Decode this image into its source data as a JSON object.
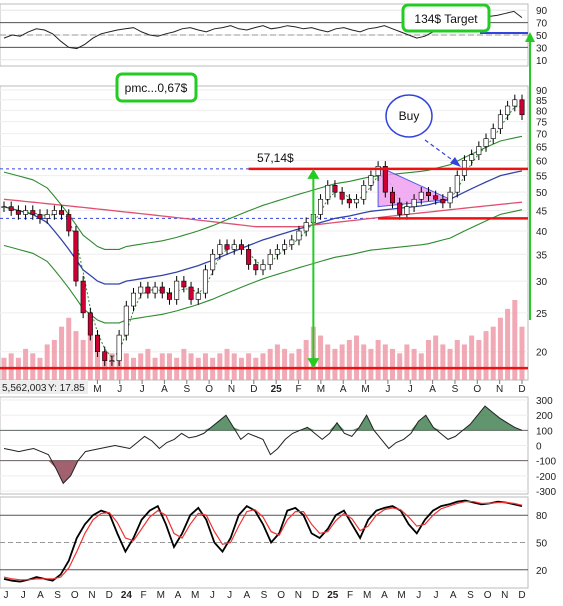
{
  "annotations": {
    "target_label": "134$ Target",
    "pmc_label": "pmc...0,67$",
    "buy_label": "Buy",
    "range_label": "57,14$"
  },
  "readout": {
    "volume_text": "5,562,003",
    "y_text": "Y: 17.85"
  },
  "colors": {
    "up_candle": "#ffffff",
    "down_candle": "#cc0033",
    "sma_blue": "#3344aa",
    "sma_pink": "#e05070",
    "bollinger": "#2e8b2e",
    "support_resistance": "#ee1111",
    "arrow_green": "#22cc22",
    "triangle_fill": "#f0a0f0",
    "annotation_box": "#22cc22",
    "buy_circle": "#3344dd",
    "volume_bars": "#ee9aa8",
    "stoch_k": "#000000",
    "stoch_d": "#ee3333"
  },
  "chart_data": [
    {
      "panel": "top-oscillator",
      "type": "line",
      "y_tick_labels": [
        "90",
        "70",
        "50",
        "30",
        "10"
      ],
      "ylim": [
        0,
        100
      ],
      "values": [
        45,
        50,
        48,
        55,
        60,
        58,
        52,
        40,
        30,
        28,
        35,
        45,
        52,
        55,
        58,
        60,
        62,
        55,
        50,
        48,
        52,
        55,
        60,
        62,
        58,
        55,
        60,
        62,
        65,
        60,
        58,
        62,
        65,
        60,
        62,
        65,
        63,
        60,
        62,
        58,
        55,
        60,
        62,
        58,
        55,
        60,
        62,
        65,
        60,
        55,
        50,
        45,
        48,
        55,
        60,
        62,
        65,
        70,
        75,
        78,
        80,
        82,
        85,
        88,
        78
      ],
      "reference_levels": [
        70,
        50,
        30
      ]
    },
    {
      "panel": "price",
      "type": "candlestick",
      "y_tick_labels": [
        "90",
        "85",
        "80",
        "75",
        "70",
        "65",
        "60",
        "55",
        "50",
        "45",
        "40",
        "35",
        "30",
        "25",
        "20"
      ],
      "y_scale": "log",
      "ylim": [
        17,
        92
      ],
      "x_tick_labels": [
        "24",
        "F",
        "M",
        "A",
        "M",
        "J",
        "J",
        "A",
        "S",
        "O",
        "N",
        "D",
        "25",
        "F",
        "M",
        "A",
        "M",
        "J",
        "J",
        "A",
        "S",
        "O",
        "N",
        "D"
      ],
      "close": [
        46,
        45,
        44,
        45,
        44,
        43,
        44,
        45,
        44,
        40,
        30,
        25,
        22,
        20,
        19,
        19,
        22,
        26,
        28,
        29,
        28,
        29,
        28,
        27,
        30,
        29,
        27,
        28,
        32,
        35,
        37,
        36,
        37,
        36,
        33,
        32,
        33,
        35,
        36,
        37,
        38,
        40,
        42,
        44,
        48,
        52,
        50,
        48,
        47,
        48,
        52,
        55,
        58,
        50,
        47,
        44,
        46,
        48,
        50,
        49,
        48,
        47,
        50,
        55,
        60,
        62,
        65,
        68,
        72,
        78,
        82,
        85,
        78
      ],
      "horizontal_levels": [
        57.14,
        43,
        18.2
      ],
      "series": [
        {
          "name": "",
          "kind": "sma-blue",
          "values": [
            46,
            45.5,
            45,
            44.5,
            44,
            43,
            42,
            40,
            38,
            36,
            34,
            32,
            31,
            30,
            29.5,
            29.5,
            29.5,
            30,
            30.2,
            30.4,
            30.6,
            30.8,
            31,
            31.3,
            31.6,
            32,
            32.4,
            32.8,
            33.3,
            33.8,
            34.4,
            35,
            35.6,
            36.2,
            36.8,
            37.4,
            38,
            38.5,
            39,
            39.5,
            40,
            40.5,
            41,
            41.5,
            42,
            42.5,
            43,
            43.3,
            43.6,
            44,
            44.4,
            44.8,
            45,
            45.2,
            45.4,
            45.6,
            45.8,
            46,
            46.2,
            46.5,
            47,
            47.5,
            48,
            49,
            50,
            51,
            52,
            53,
            54,
            55,
            55.5,
            56,
            56.5
          ]
        },
        {
          "name": "",
          "kind": "sma-pink",
          "values": [
            48,
            47.8,
            47.6,
            47.4,
            47.2,
            47,
            46.8,
            46.6,
            46.4,
            46.2,
            46,
            45.8,
            45.6,
            45.4,
            45.2,
            45,
            44.8,
            44.6,
            44.4,
            44.2,
            44,
            43.8,
            43.6,
            43.4,
            43.2,
            43,
            42.8,
            42.6,
            42.4,
            42.2,
            42,
            41.8,
            41.6,
            41.4,
            41.2,
            41,
            41,
            41,
            41,
            41,
            41,
            41,
            41.2,
            41.4,
            41.6,
            41.8,
            42,
            42.2,
            42.4,
            42.6,
            42.8,
            43,
            43.2,
            43.4,
            43.6,
            43.8,
            44,
            44.2,
            44.4,
            44.6,
            44.8,
            45,
            45.2,
            45.4,
            45.6,
            45.8,
            46,
            46.2,
            46.4,
            46.6,
            46.8,
            47,
            47.2
          ]
        }
      ],
      "volume": [
        5,
        6,
        5,
        7,
        6,
        5,
        8,
        9,
        12,
        14,
        11,
        9,
        10,
        7,
        6,
        6,
        5,
        6,
        5,
        6,
        7,
        5,
        6,
        6,
        5,
        7,
        6,
        5,
        6,
        5,
        6,
        7,
        6,
        5,
        6,
        5,
        6,
        7,
        8,
        7,
        6,
        7,
        9,
        12,
        10,
        8,
        7,
        8,
        9,
        10,
        8,
        7,
        9,
        8,
        7,
        6,
        8,
        7,
        6,
        9,
        10,
        8,
        7,
        9,
        8,
        10,
        9,
        11,
        12,
        14,
        16,
        18,
        12
      ],
      "triangle_pattern": {
        "apex_price": 48,
        "top_price": 58,
        "bottom_price": 42
      }
    },
    {
      "panel": "middle-oscillator",
      "type": "area",
      "y_tick_labels": [
        "300",
        "200",
        "100",
        "0",
        "-100",
        "-200",
        "-300"
      ],
      "ylim": [
        -320,
        320
      ],
      "reference_levels": [
        100,
        -100
      ],
      "values": [
        -20,
        -30,
        -40,
        -30,
        -20,
        -40,
        -60,
        -150,
        -250,
        -200,
        -100,
        -40,
        -30,
        -20,
        -10,
        0,
        -10,
        -20,
        20,
        60,
        30,
        -20,
        20,
        40,
        80,
        50,
        60,
        80,
        120,
        160,
        200,
        120,
        40,
        80,
        60,
        40,
        -60,
        -20,
        40,
        80,
        100,
        120,
        80,
        40,
        80,
        150,
        80,
        60,
        120,
        200,
        100,
        40,
        -20,
        20,
        40,
        80,
        160,
        200,
        120,
        80,
        40,
        60,
        100,
        140,
        200,
        260,
        220,
        180,
        150,
        120,
        100
      ],
      "series": [
        {
          "name": "",
          "values": []
        }
      ]
    },
    {
      "panel": "stochastic",
      "type": "line",
      "y_tick_labels": [
        "80",
        "50",
        "20"
      ],
      "ylim": [
        0,
        100
      ],
      "reference_levels": [
        80,
        50,
        20
      ],
      "x_tick_labels": [
        "J",
        "J",
        "A",
        "S",
        "O",
        "N",
        "D",
        "24",
        "F",
        "M",
        "A",
        "M",
        "J",
        "J",
        "A",
        "S",
        "O",
        "N",
        "D",
        "25",
        "F",
        "M",
        "A",
        "M",
        "J",
        "J",
        "A",
        "S",
        "O",
        "N",
        "D"
      ],
      "series": [
        {
          "name": "",
          "kind": "k",
          "values": [
            10,
            8,
            7,
            9,
            12,
            10,
            8,
            15,
            30,
            55,
            70,
            80,
            85,
            82,
            60,
            40,
            55,
            75,
            85,
            90,
            70,
            45,
            60,
            80,
            88,
            75,
            50,
            40,
            55,
            80,
            90,
            85,
            70,
            50,
            60,
            85,
            88,
            80,
            60,
            55,
            65,
            80,
            85,
            70,
            55,
            75,
            85,
            88,
            90,
            85,
            70,
            60,
            75,
            85,
            90,
            92,
            95,
            96,
            94,
            92,
            93,
            95,
            94,
            92,
            90
          ]
        },
        {
          "name": "",
          "kind": "d",
          "values": [
            12,
            10,
            9,
            9,
            10,
            10,
            10,
            12,
            22,
            40,
            60,
            75,
            82,
            83,
            72,
            55,
            52,
            65,
            78,
            85,
            80,
            60,
            55,
            70,
            82,
            80,
            62,
            48,
            50,
            68,
            84,
            86,
            78,
            62,
            58,
            75,
            84,
            84,
            70,
            60,
            62,
            74,
            82,
            76,
            63,
            68,
            80,
            86,
            88,
            86,
            78,
            68,
            70,
            80,
            87,
            90,
            93,
            95,
            95,
            93,
            93,
            94,
            94,
            93,
            91
          ]
        }
      ]
    }
  ]
}
